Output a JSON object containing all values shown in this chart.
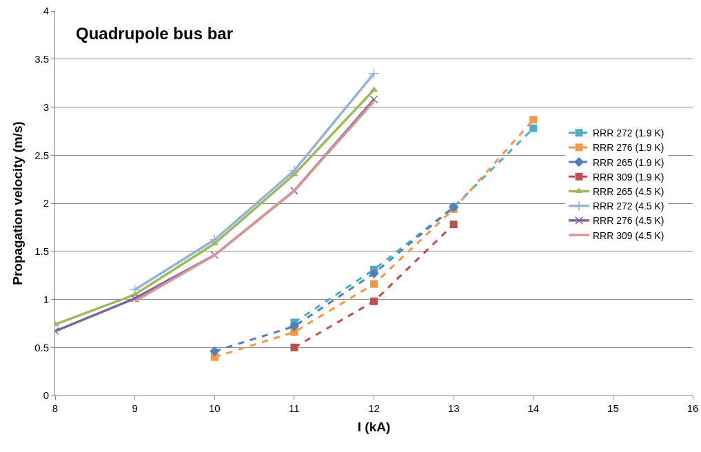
{
  "chart_data": {
    "type": "line",
    "title": "Quadrupole bus bar",
    "xlabel": "I (kA)",
    "ylabel": "Propagation velocity (m/s)",
    "xlim": [
      8,
      16
    ],
    "xticks": [
      8,
      9,
      10,
      11,
      12,
      13,
      14,
      15,
      16
    ],
    "ylim": [
      0,
      4
    ],
    "yticks": [
      0,
      0.5,
      1,
      1.5,
      2,
      2.5,
      3,
      3.5,
      4
    ],
    "grid": "y",
    "legend": "right",
    "series": [
      {
        "name": "RRR 272 (1.9 K)",
        "color": "#4bacc6",
        "x": [
          11,
          12,
          13,
          14
        ],
        "values": [
          0.76,
          1.31,
          1.96,
          2.78
        ],
        "marker": "square",
        "line_style": "dashed"
      },
      {
        "name": "RRR 276 (1.9 K)",
        "color": "#f79646",
        "x": [
          10,
          11,
          12,
          13,
          14
        ],
        "values": [
          0.4,
          0.66,
          1.16,
          1.94,
          2.87
        ],
        "marker": "square",
        "line_style": "dashed"
      },
      {
        "name": "RRR 265 (1.9 K)",
        "color": "#4f81bd",
        "x": [
          10,
          11,
          12,
          13
        ],
        "values": [
          0.46,
          0.72,
          1.27,
          1.96
        ],
        "marker": "diamond",
        "line_style": "dashed"
      },
      {
        "name": "RRR 309 (1.9 K)",
        "color": "#c0504d",
        "x": [
          11,
          12,
          13
        ],
        "values": [
          0.5,
          0.98,
          1.78
        ],
        "marker": "square",
        "line_style": "dashed"
      },
      {
        "name": "RRR 265 (4.5 K)",
        "color": "#9bbb59",
        "x": [
          8,
          9,
          10,
          11,
          12
        ],
        "values": [
          0.74,
          1.05,
          1.58,
          2.3,
          3.18
        ],
        "marker": "triangle",
        "line_style": "solid"
      },
      {
        "name": "RRR 272 (4.5 K)",
        "color": "#95b3d7",
        "x": [
          9,
          10,
          11,
          12
        ],
        "values": [
          1.1,
          1.62,
          2.34,
          3.35
        ],
        "marker": "cross",
        "line_style": "solid"
      },
      {
        "name": "RRR 276 (4.5 K)",
        "color": "#8064a2",
        "x": [
          8,
          9,
          10,
          11,
          12
        ],
        "values": [
          0.67,
          1.01,
          1.46,
          2.13,
          3.08
        ],
        "marker": "x",
        "line_style": "solid"
      },
      {
        "name": "RRR 309 (4.5 K)",
        "color": "#d99694",
        "x": [
          9,
          10,
          11,
          12
        ],
        "values": [
          0.98,
          1.46,
          2.13,
          3.06
        ],
        "marker": "none",
        "line_style": "solid"
      }
    ]
  }
}
